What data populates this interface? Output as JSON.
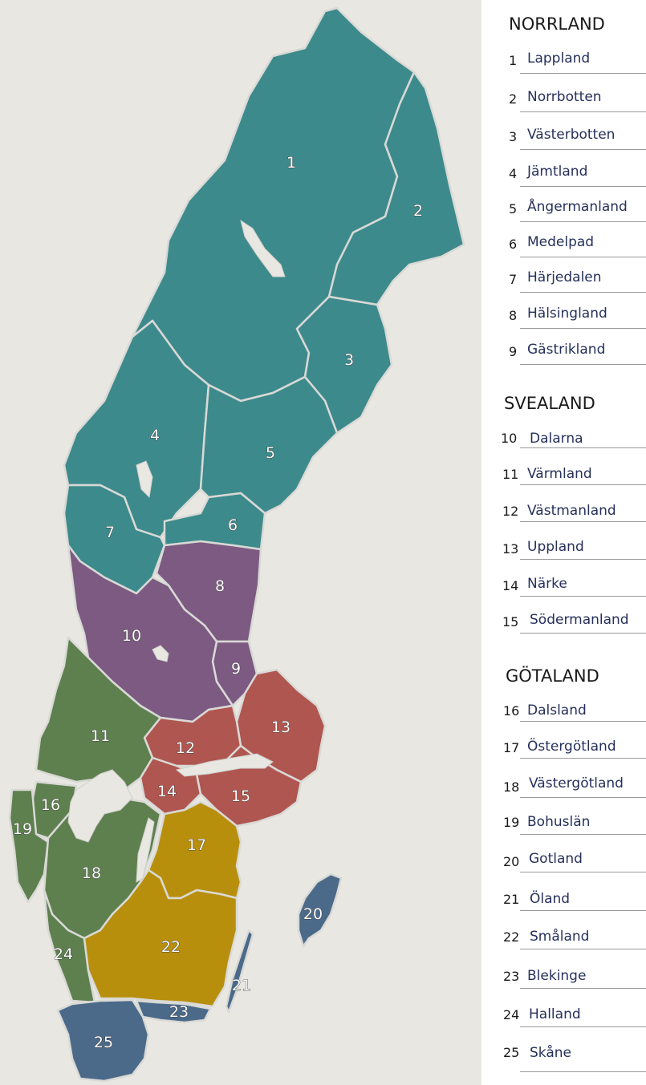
{
  "colors": {
    "background": "#e8e7e1",
    "norrland": "#3d8a8c",
    "svealand_dalarna": "#7c5a82",
    "svealand_east": "#b05650",
    "gotaland_west": "#5e804f",
    "gotaland_south": "#b88f0c",
    "gotaland_islands": "#4b6a8a",
    "borders": "#d9d9d6"
  },
  "map_labels": [
    "1",
    "2",
    "3",
    "4",
    "5",
    "6",
    "7",
    "8",
    "9",
    "10",
    "11",
    "12",
    "13",
    "14",
    "15",
    "16",
    "17",
    "18",
    "19",
    "20",
    "21",
    "22",
    "23",
    "24",
    "25"
  ],
  "legend": {
    "groups": [
      {
        "heading": "NORRLAND",
        "items": [
          {
            "num": "1",
            "name": "Lappland"
          },
          {
            "num": "2",
            "name": "Norrbotten"
          },
          {
            "num": "3",
            "name": "Västerbotten"
          },
          {
            "num": "4",
            "name": "Jämtland"
          },
          {
            "num": "5",
            "name": "Ångermanland"
          },
          {
            "num": "6",
            "name": "Medelpad"
          },
          {
            "num": "7",
            "name": "Härjedalen"
          },
          {
            "num": "8",
            "name": "Hälsingland"
          },
          {
            "num": "9",
            "name": "Gästrikland"
          }
        ]
      },
      {
        "heading": "SVEALAND",
        "items": [
          {
            "num": "10",
            "name": "Dalarna"
          },
          {
            "num": "11",
            "name": "Värmland"
          },
          {
            "num": "12",
            "name": "Västmanland"
          },
          {
            "num": "13",
            "name": "Uppland"
          },
          {
            "num": "14",
            "name": "Närke"
          },
          {
            "num": "15",
            "name": "Södermanland"
          }
        ]
      },
      {
        "heading": "GÖTALAND",
        "items": [
          {
            "num": "16",
            "name": "Dalsland"
          },
          {
            "num": "17",
            "name": "Östergötland"
          },
          {
            "num": "18",
            "name": "Västergötland"
          },
          {
            "num": "19",
            "name": "Bohuslän"
          },
          {
            "num": "20",
            "name": "Gotland"
          },
          {
            "num": "21",
            "name": "Öland"
          },
          {
            "num": "22",
            "name": "Småland"
          },
          {
            "num": "23",
            "name": "Blekinge"
          },
          {
            "num": "24",
            "name": "Halland"
          },
          {
            "num": "25",
            "name": "Skåne"
          }
        ]
      }
    ]
  }
}
